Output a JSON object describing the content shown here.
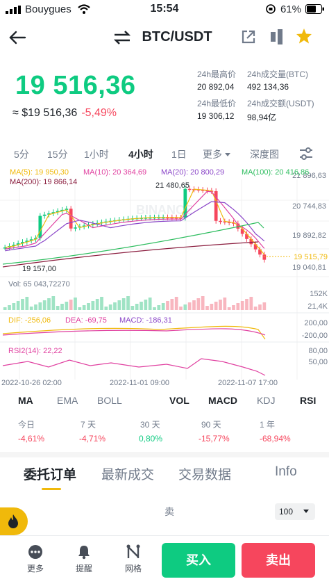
{
  "status_bar": {
    "carrier": "Bouygues",
    "time": "15:54",
    "battery": "61%"
  },
  "header": {
    "pair": "BTC/USDT"
  },
  "price": {
    "last": "19 516,36",
    "fiat": "≈ $19 516,36",
    "change": "-5,49%"
  },
  "stats": {
    "high_label": "24h最高价",
    "high_value": "20 892,04",
    "low_label": "24h最低价",
    "low_value": "19 306,12",
    "vol_btc_label": "24h成交量(BTC)",
    "vol_btc_value": "492 134,36",
    "vol_usdt_label": "24h成交额(USDT)",
    "vol_usdt_value": "98,94亿"
  },
  "timeframes": [
    "5分",
    "15分",
    "1小时",
    "4小时",
    "1日",
    "更多",
    "深度图"
  ],
  "active_timeframe": "4小时",
  "chart": {
    "ma_labels": {
      "ma5": "MA(5): 19 950,30",
      "ma10": "MA(10): 20 364,69",
      "ma20": "MA(20): 20 800,29",
      "ma100": "MA(100): 20 416,86",
      "ma200": "MA(200): 19 866,14"
    },
    "price_axis": [
      "21 896,63",
      "20 744,83",
      "19 892,82",
      "19 040,81"
    ],
    "current_price_tag": "19 515,79",
    "high_marker": "21 480,65",
    "low_marker": "19 157,00",
    "watermark": "BINANCE",
    "vol_label": "Vol: 65 043,72270",
    "vol_axis": [
      "152K",
      "21,4K"
    ],
    "macd_labels": {
      "dif": "DIF: -256,06",
      "dea": "DEA: -69,75",
      "macd": "MACD: -186,31"
    },
    "macd_axis": [
      "200,00",
      "-200,00"
    ],
    "rsi_label": "RSI2(14): 22,22",
    "rsi_axis": [
      "80,00",
      "50,00"
    ],
    "time_axis": [
      "2022-10-26 02:00",
      "2022-11-01 09:00",
      "2022-11-07 17:00"
    ],
    "colors": {
      "up": "#0ecb81",
      "down": "#f6465d",
      "ma5": "#f0b90b",
      "ma10": "#e040a0",
      "ma20": "#8a45c8",
      "ma100": "#2ebd5f",
      "ma200": "#8b1e3f"
    }
  },
  "indicators": [
    "MA",
    "EMA",
    "BOLL",
    "VOL",
    "MACD",
    "KDJ",
    "RSI"
  ],
  "performance": [
    {
      "label": "今日",
      "value": "-4,61%"
    },
    {
      "label": "7 天",
      "value": "-4,71%"
    },
    {
      "label": "30 天",
      "value": "0,80%"
    },
    {
      "label": "90 天",
      "value": "-15,77%"
    },
    {
      "label": "1 年",
      "value": "-68,94%"
    }
  ],
  "tabs": [
    "委托订单",
    "最新成交",
    "交易数据",
    "Info"
  ],
  "orderbook": {
    "sell_label": "卖",
    "depth": "100"
  },
  "bottom_bar": {
    "more": "更多",
    "alert": "提醒",
    "grid": "网格",
    "buy": "买入",
    "sell": "卖出"
  }
}
